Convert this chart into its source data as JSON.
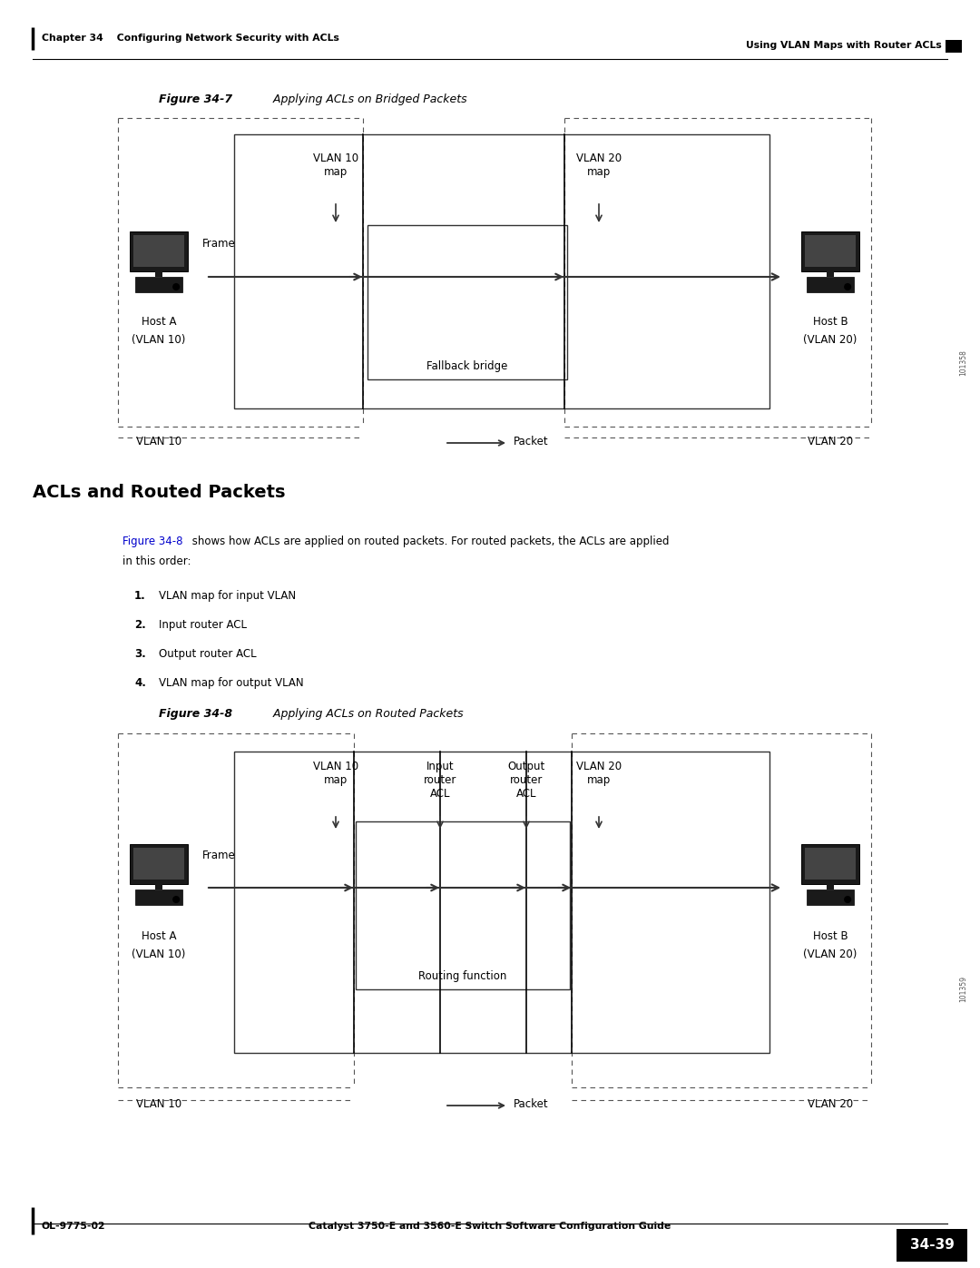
{
  "page_width": 10.8,
  "page_height": 13.97,
  "bg_color": "#ffffff",
  "header_left": "Chapter 34    Configuring Network Security with ACLs",
  "header_right": "Using VLAN Maps with Router ACLs",
  "footer_left": "OL-9775-02",
  "footer_right": "34-39",
  "footer_center": "Catalyst 3750-E and 3560-E Switch Software Configuration Guide",
  "fig1_title_label": "Figure 34-7",
  "fig1_title_text": "    Applying ACLs on Bridged Packets",
  "fig2_title_label": "Figure 34-8",
  "fig2_title_text": "    Applying ACLs on Routed Packets",
  "section_title": "ACLs and Routed Packets",
  "list_items": [
    "VLAN map for input VLAN",
    "Input router ACL",
    "Output router ACL",
    "VLAN map for output VLAN"
  ],
  "vlan10_label": "VLAN 10",
  "vlan20_label": "VLAN 20",
  "packet_label": "Packet",
  "fallback_bridge_label": "Fallback bridge",
  "routing_function_label": "Routing function",
  "host_a_label": "Host A",
  "host_a_vlan": "(VLAN 10)",
  "host_b_label": "Host B",
  "host_b_vlan": "(VLAN 20)",
  "frame_label": "Frame",
  "vlan10_map_label": "VLAN 10\nmap",
  "vlan20_map_label": "VLAN 20\nmap",
  "input_router_acl_label": "Input\nrouter\nACL",
  "output_router_acl_label": "Output\nrouter\nACL",
  "sidebar_number": "101358",
  "sidebar_number2": "101359",
  "fig1_body_line1": " shows how ACLs are applied on routed packets. For routed packets, the ACLs are applied",
  "fig1_body_line2": "in this order:"
}
